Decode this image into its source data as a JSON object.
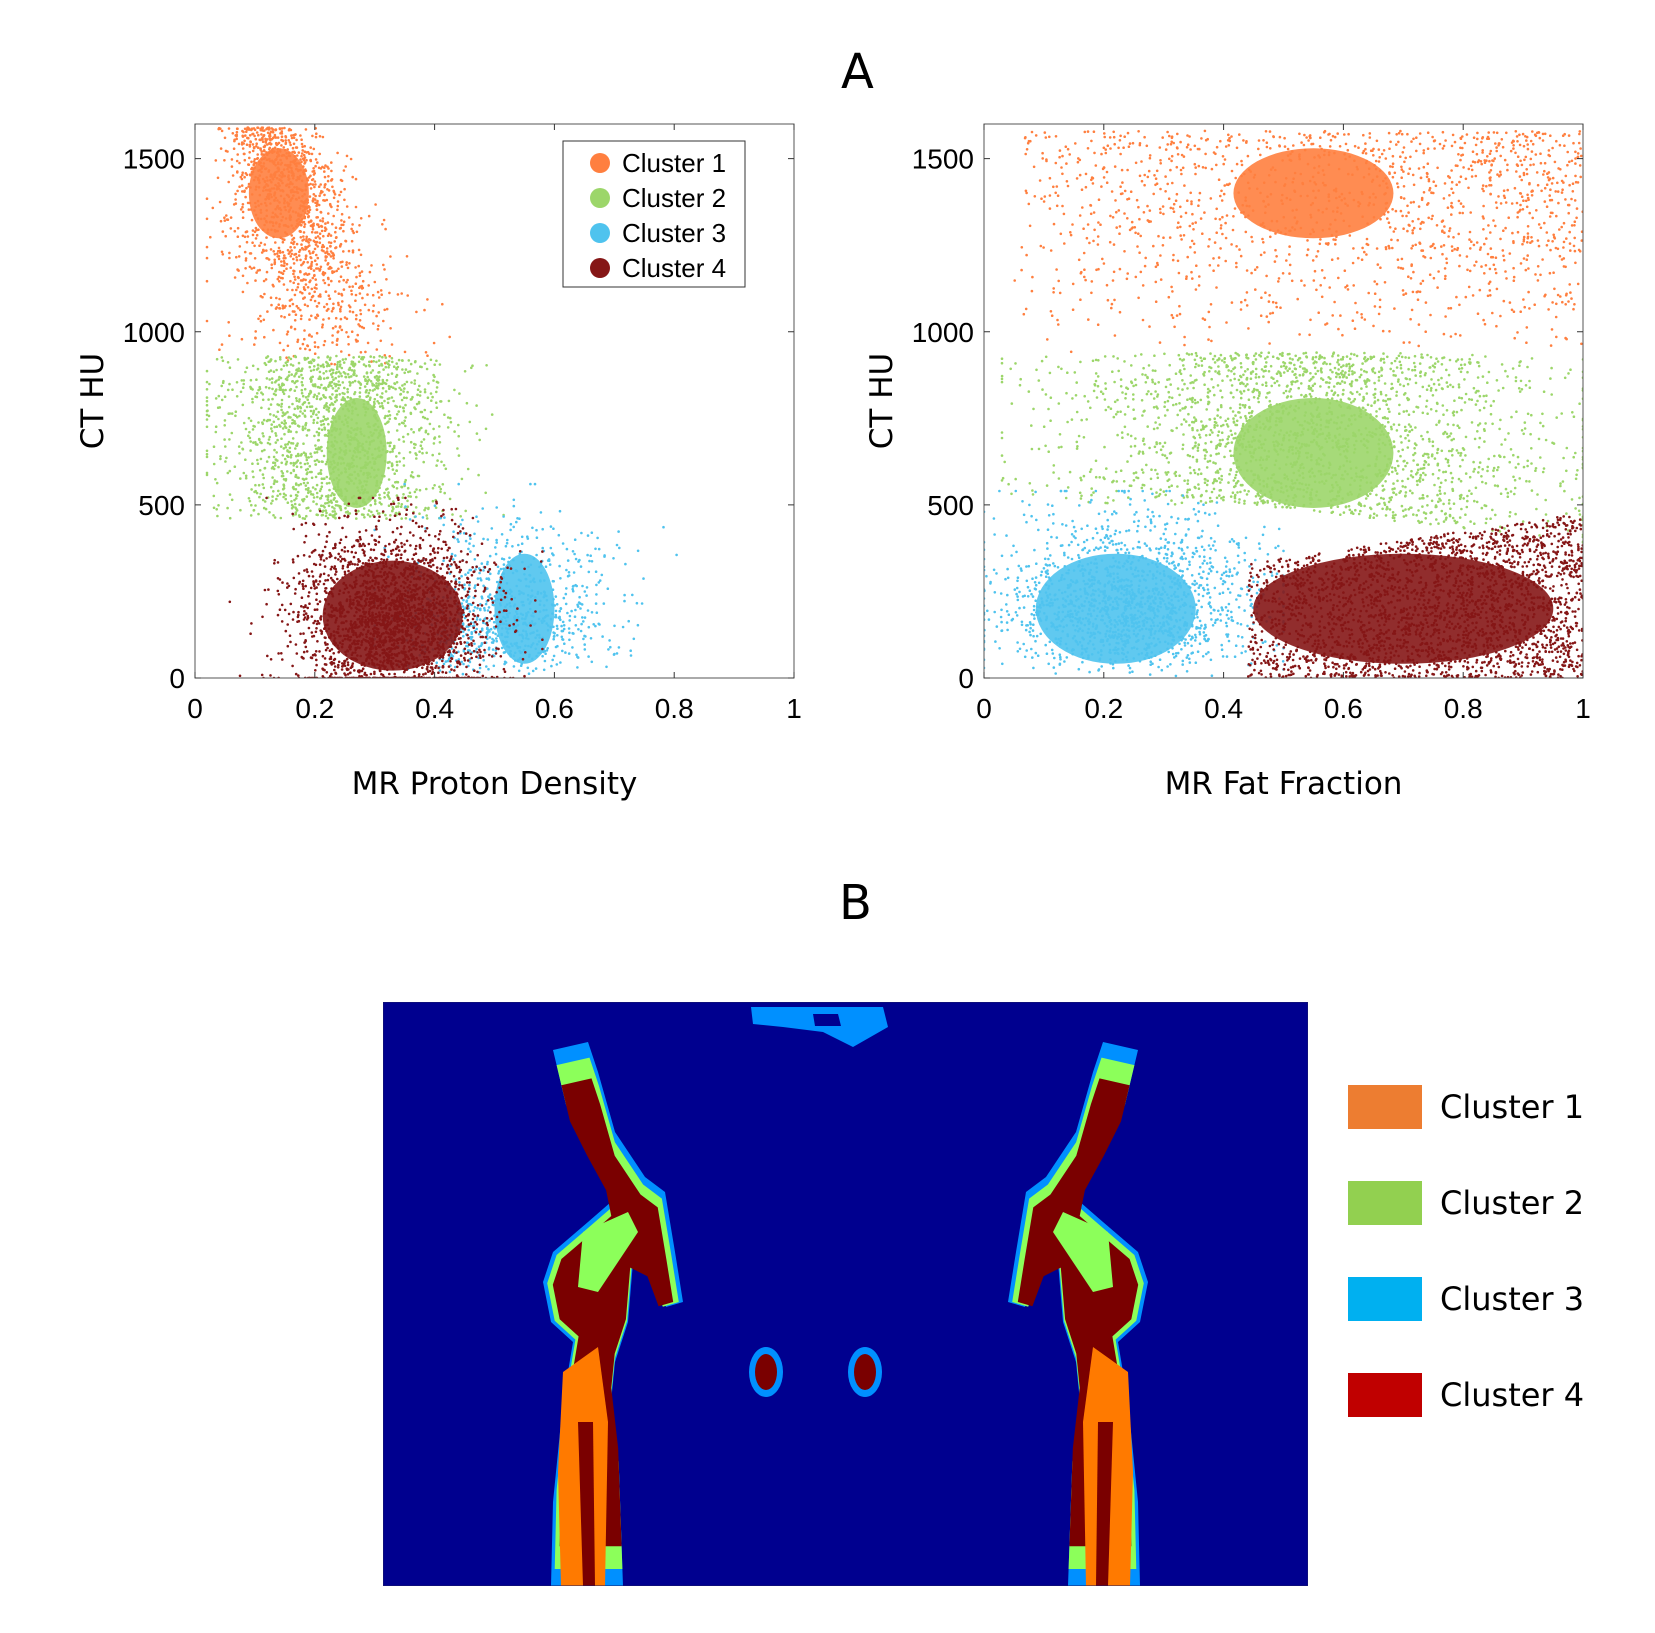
{
  "panel_labels": {
    "a": "A",
    "b": "B"
  },
  "colors": {
    "cluster1": "#FF7F3F",
    "cluster2": "#9CD66A",
    "cluster3": "#4FC3EE",
    "cluster4": "#851616",
    "legend_cluster4": "#C00000",
    "legend_cluster1": "#ED7D31",
    "legend_cluster3": "#00B0F0",
    "legend_cluster2": "#92D050",
    "map_background": "#00008F",
    "map_cluster1": "#FF7A00",
    "map_cluster2": "#8CFF5A",
    "map_cluster3": "#0090FF",
    "map_cluster4": "#7A0000"
  },
  "chart_data": [
    {
      "type": "scatter",
      "xlabel": "MR Proton Density",
      "ylabel": "CT HU",
      "xlim": [
        0,
        1
      ],
      "ylim": [
        0,
        1600
      ],
      "xticks": [
        "0",
        "0.2",
        "0.4",
        "0.6",
        "0.8",
        "1"
      ],
      "yticks": [
        "0",
        "500",
        "1000",
        "1500"
      ],
      "legend_position": "top-right",
      "series": [
        {
          "name": "Cluster 1",
          "x_range": [
            0.03,
            0.45
          ],
          "y_range": [
            900,
            1600
          ],
          "center": [
            0.14,
            1400
          ]
        },
        {
          "name": "Cluster 2",
          "x_range": [
            0.03,
            0.7
          ],
          "y_range": [
            450,
            930
          ],
          "center": [
            0.27,
            650
          ]
        },
        {
          "name": "Cluster 3",
          "x_range": [
            0.35,
            0.95
          ],
          "y_range": [
            0,
            550
          ],
          "center": [
            0.55,
            200
          ]
        },
        {
          "name": "Cluster 4",
          "x_range": [
            0.03,
            0.55
          ],
          "y_range": [
            0,
            500
          ],
          "center": [
            0.33,
            180
          ]
        }
      ]
    },
    {
      "type": "scatter",
      "xlabel": "MR Fat Fraction",
      "ylabel": "CT HU",
      "xlim": [
        0,
        1
      ],
      "ylim": [
        0,
        1600
      ],
      "xticks": [
        "0",
        "0.2",
        "0.4",
        "0.6",
        "0.8",
        "1"
      ],
      "yticks": [
        "0",
        "500",
        "1000",
        "1500"
      ],
      "series": [
        {
          "name": "Cluster 1",
          "x_range": [
            0.05,
            1.0
          ],
          "y_range": [
            930,
            1600
          ],
          "center": [
            0.55,
            1400
          ]
        },
        {
          "name": "Cluster 2",
          "x_range": [
            0.05,
            1.0
          ],
          "y_range": [
            380,
            950
          ],
          "center": [
            0.55,
            650
          ]
        },
        {
          "name": "Cluster 3",
          "x_range": [
            0.0,
            0.5
          ],
          "y_range": [
            0,
            520
          ],
          "center": [
            0.22,
            200
          ]
        },
        {
          "name": "Cluster 4",
          "x_range": [
            0.4,
            1.0
          ],
          "y_range": [
            0,
            480
          ],
          "center": [
            0.7,
            200
          ]
        }
      ]
    }
  ],
  "legend_b": [
    {
      "label": "Cluster 1"
    },
    {
      "label": "Cluster 2"
    },
    {
      "label": "Cluster 3"
    },
    {
      "label": "Cluster 4"
    }
  ]
}
